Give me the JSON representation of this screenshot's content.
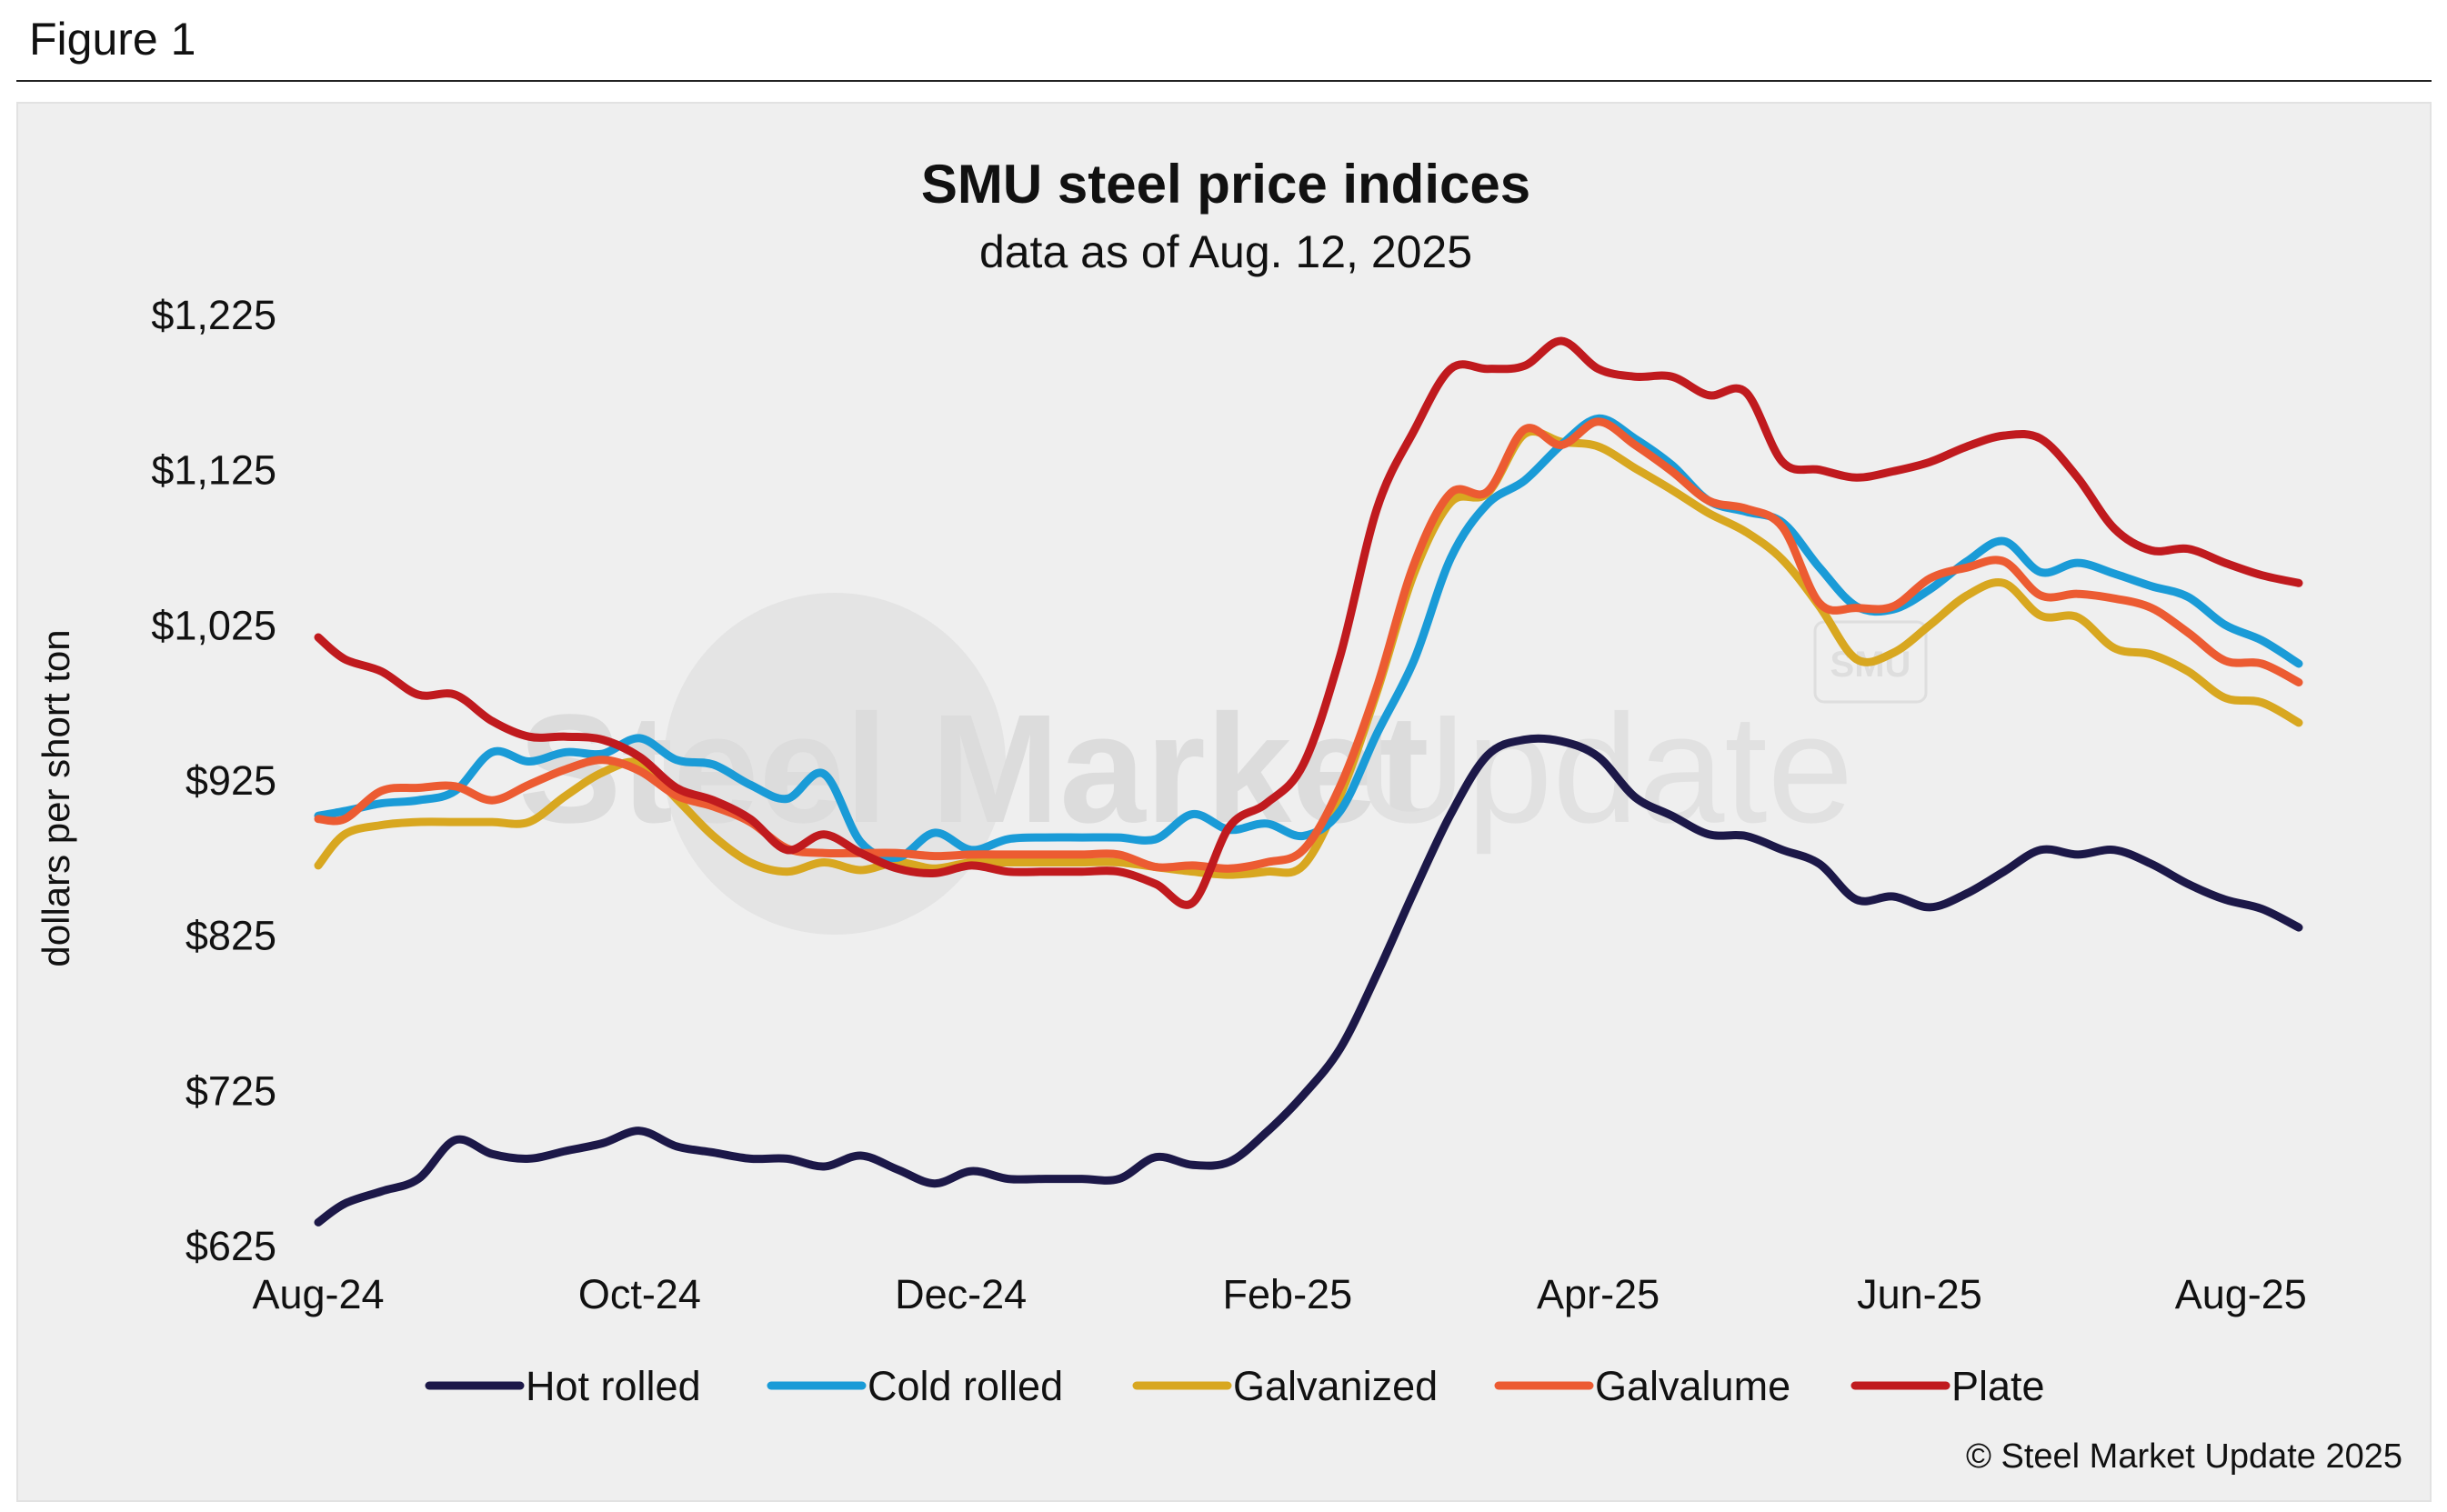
{
  "figure_label": "Figure 1",
  "credit": "© Steel Market Update 2025",
  "watermark": {
    "bold": "Steel Market",
    "thin": "Update",
    "badge": "SMU"
  },
  "colors": {
    "Hot rolled": "#1c1848",
    "Cold rolled": "#1a9bd7",
    "Galvanized": "#d8a720",
    "Galvalume": "#ec5b32",
    "Plate": "#c01a1e",
    "background": "#efefef"
  },
  "chart_data": {
    "type": "line",
    "title": "SMU steel price indices",
    "subtitle": "data as of Aug. 12, 2025",
    "ylabel": "dollars per short ton",
    "xlabel": "",
    "ylim": [
      625,
      1225
    ],
    "yticks": [
      625,
      725,
      825,
      925,
      1025,
      1125,
      1225
    ],
    "ytick_labels": [
      "$625",
      "$725",
      "$825",
      "$925",
      "$1,025",
      "$1,125",
      "$1,225"
    ],
    "xlim": [
      "2024-08-01",
      "2025-08-12"
    ],
    "xticks": [
      "2024-08-01",
      "2024-10-01",
      "2024-12-01",
      "2025-02-01",
      "2025-04-01",
      "2025-06-01",
      "2025-08-01"
    ],
    "xtick_labels": [
      "Aug-24",
      "Oct-24",
      "Dec-24",
      "Feb-25",
      "Apr-25",
      "Jun-25",
      "Aug-25"
    ],
    "grid": false,
    "legend_position": "bottom",
    "series": [
      {
        "name": "Hot rolled",
        "x": [
          "2024-08-01",
          "2024-08-06",
          "2024-08-13",
          "2024-08-20",
          "2024-08-27",
          "2024-09-03",
          "2024-09-10",
          "2024-09-17",
          "2024-09-24",
          "2024-10-01",
          "2024-10-08",
          "2024-10-15",
          "2024-10-22",
          "2024-10-29",
          "2024-11-05",
          "2024-11-12",
          "2024-11-19",
          "2024-11-26",
          "2024-12-03",
          "2024-12-10",
          "2024-12-17",
          "2024-12-24",
          "2024-12-31",
          "2025-01-07",
          "2025-01-14",
          "2025-01-21",
          "2025-01-28",
          "2025-02-04",
          "2025-02-11",
          "2025-02-18",
          "2025-02-25",
          "2025-03-04",
          "2025-03-11",
          "2025-03-18",
          "2025-03-25",
          "2025-04-01",
          "2025-04-08",
          "2025-04-15",
          "2025-04-22",
          "2025-04-29",
          "2025-05-06",
          "2025-05-13",
          "2025-05-20",
          "2025-05-27",
          "2025-06-03",
          "2025-06-10",
          "2025-06-17",
          "2025-06-24",
          "2025-07-01",
          "2025-07-08",
          "2025-07-15",
          "2025-07-22",
          "2025-07-29",
          "2025-08-05",
          "2025-08-12"
        ],
        "values": [
          640,
          652,
          660,
          668,
          693,
          684,
          681,
          686,
          691,
          699,
          689,
          685,
          681,
          681,
          676,
          683,
          674,
          665,
          673,
          668,
          668,
          668,
          668,
          682,
          677,
          679,
          698,
          722,
          752,
          800,
          853,
          903,
          941,
          951,
          950,
          940,
          914,
          902,
          890,
          889,
          880,
          871,
          848,
          850,
          843,
          852,
          866,
          880,
          877,
          880,
          871,
          858,
          848,
          842,
          830
        ]
      },
      {
        "name": "Cold rolled",
        "x": [
          "2024-08-01",
          "2024-08-06",
          "2024-08-13",
          "2024-08-20",
          "2024-08-27",
          "2024-09-03",
          "2024-09-10",
          "2024-09-17",
          "2024-09-24",
          "2024-10-01",
          "2024-10-08",
          "2024-10-15",
          "2024-10-22",
          "2024-10-29",
          "2024-11-05",
          "2024-11-12",
          "2024-11-19",
          "2024-11-26",
          "2024-12-03",
          "2024-12-10",
          "2024-12-17",
          "2024-12-24",
          "2024-12-31",
          "2025-01-07",
          "2025-01-14",
          "2025-01-21",
          "2025-01-28",
          "2025-02-04",
          "2025-02-11",
          "2025-02-18",
          "2025-02-25",
          "2025-03-04",
          "2025-03-11",
          "2025-03-18",
          "2025-03-25",
          "2025-04-01",
          "2025-04-08",
          "2025-04-15",
          "2025-04-22",
          "2025-04-29",
          "2025-05-06",
          "2025-05-13",
          "2025-05-20",
          "2025-05-27",
          "2025-06-03",
          "2025-06-10",
          "2025-06-17",
          "2025-06-24",
          "2025-07-01",
          "2025-07-08",
          "2025-07-15",
          "2025-07-22",
          "2025-07-29",
          "2025-08-05",
          "2025-08-12"
        ],
        "values": [
          902,
          905,
          910,
          912,
          918,
          943,
          937,
          943,
          942,
          952,
          938,
          935,
          922,
          913,
          929,
          885,
          875,
          891,
          880,
          887,
          888,
          888,
          888,
          887,
          903,
          893,
          897,
          889,
          905,
          955,
          1002,
          1068,
          1103,
          1118,
          1141,
          1158,
          1145,
          1128,
          1105,
          1098,
          1091,
          1062,
          1037,
          1035,
          1048,
          1066,
          1079,
          1059,
          1065,
          1058,
          1050,
          1043,
          1025,
          1015,
          1000
        ]
      },
      {
        "name": "Galvanized",
        "x": [
          "2024-08-01",
          "2024-08-06",
          "2024-08-13",
          "2024-08-20",
          "2024-08-27",
          "2024-09-03",
          "2024-09-10",
          "2024-09-17",
          "2024-09-24",
          "2024-10-01",
          "2024-10-08",
          "2024-10-15",
          "2024-10-22",
          "2024-10-29",
          "2024-11-05",
          "2024-11-12",
          "2024-11-19",
          "2024-11-26",
          "2024-12-03",
          "2024-12-10",
          "2024-12-17",
          "2024-12-24",
          "2024-12-31",
          "2025-01-07",
          "2025-01-14",
          "2025-01-21",
          "2025-01-28",
          "2025-02-04",
          "2025-02-11",
          "2025-02-18",
          "2025-02-25",
          "2025-03-04",
          "2025-03-11",
          "2025-03-18",
          "2025-03-25",
          "2025-04-01",
          "2025-04-08",
          "2025-04-15",
          "2025-04-22",
          "2025-04-29",
          "2025-05-06",
          "2025-05-13",
          "2025-05-20",
          "2025-05-27",
          "2025-06-03",
          "2025-06-10",
          "2025-06-17",
          "2025-06-24",
          "2025-07-01",
          "2025-07-08",
          "2025-07-15",
          "2025-07-22",
          "2025-07-29",
          "2025-08-05",
          "2025-08-12"
        ],
        "values": [
          870,
          890,
          896,
          898,
          898,
          898,
          898,
          915,
          930,
          936,
          913,
          889,
          872,
          866,
          872,
          867,
          872,
          868,
          872,
          872,
          872,
          872,
          872,
          869,
          866,
          864,
          866,
          870,
          915,
          982,
          1058,
          1104,
          1110,
          1148,
          1143,
          1140,
          1126,
          1112,
          1097,
          1085,
          1067,
          1037,
          1003,
          1007,
          1025,
          1044,
          1052,
          1031,
          1030,
          1010,
          1006,
          995,
          978,
          975,
          962
        ]
      },
      {
        "name": "Galvalume",
        "x": [
          "2024-08-01",
          "2024-08-06",
          "2024-08-13",
          "2024-08-20",
          "2024-08-27",
          "2024-09-03",
          "2024-09-10",
          "2024-09-17",
          "2024-09-24",
          "2024-10-01",
          "2024-10-08",
          "2024-10-15",
          "2024-10-22",
          "2024-10-29",
          "2024-11-05",
          "2024-11-12",
          "2024-11-19",
          "2024-11-26",
          "2024-12-03",
          "2024-12-10",
          "2024-12-17",
          "2024-12-24",
          "2024-12-31",
          "2025-01-07",
          "2025-01-14",
          "2025-01-21",
          "2025-01-28",
          "2025-02-04",
          "2025-02-11",
          "2025-02-18",
          "2025-02-25",
          "2025-03-04",
          "2025-03-11",
          "2025-03-18",
          "2025-03-25",
          "2025-04-01",
          "2025-04-08",
          "2025-04-15",
          "2025-04-22",
          "2025-04-29",
          "2025-05-06",
          "2025-05-13",
          "2025-05-20",
          "2025-05-27",
          "2025-06-03",
          "2025-06-10",
          "2025-06-17",
          "2025-06-24",
          "2025-07-01",
          "2025-07-08",
          "2025-07-15",
          "2025-07-22",
          "2025-07-29",
          "2025-08-05",
          "2025-08-12"
        ],
        "values": [
          900,
          900,
          918,
          920,
          921,
          912,
          922,
          932,
          938,
          931,
          915,
          908,
          898,
          881,
          878,
          878,
          878,
          876,
          877,
          877,
          877,
          877,
          877,
          869,
          870,
          868,
          872,
          880,
          921,
          985,
          1064,
          1110,
          1111,
          1151,
          1141,
          1156,
          1141,
          1124,
          1105,
          1100,
          1088,
          1039,
          1036,
          1037,
          1055,
          1062,
          1066,
          1044,
          1045,
          1042,
          1036,
          1020,
          1002,
          1000,
          988
        ]
      },
      {
        "name": "Plate",
        "x": [
          "2024-08-01",
          "2024-08-06",
          "2024-08-13",
          "2024-08-20",
          "2024-08-27",
          "2024-09-03",
          "2024-09-10",
          "2024-09-17",
          "2024-09-24",
          "2024-10-01",
          "2024-10-08",
          "2024-10-15",
          "2024-10-22",
          "2024-10-29",
          "2024-11-05",
          "2024-11-12",
          "2024-11-19",
          "2024-11-26",
          "2024-12-03",
          "2024-12-10",
          "2024-12-17",
          "2024-12-24",
          "2024-12-31",
          "2025-01-07",
          "2025-01-14",
          "2025-01-21",
          "2025-01-28",
          "2025-02-04",
          "2025-02-11",
          "2025-02-18",
          "2025-02-25",
          "2025-03-04",
          "2025-03-11",
          "2025-03-18",
          "2025-03-25",
          "2025-04-01",
          "2025-04-08",
          "2025-04-15",
          "2025-04-22",
          "2025-04-29",
          "2025-05-06",
          "2025-05-13",
          "2025-05-20",
          "2025-05-27",
          "2025-06-03",
          "2025-06-10",
          "2025-06-17",
          "2025-06-24",
          "2025-07-01",
          "2025-07-08",
          "2025-07-15",
          "2025-07-22",
          "2025-07-29",
          "2025-08-05",
          "2025-08-12"
        ],
        "values": [
          1017,
          1003,
          995,
          980,
          980,
          963,
          953,
          953,
          951,
          940,
          920,
          912,
          900,
          880,
          890,
          878,
          868,
          865,
          870,
          866,
          866,
          866,
          866,
          858,
          846,
          895,
          910,
          935,
          1005,
          1100,
          1150,
          1190,
          1190,
          1192,
          1208,
          1190,
          1185,
          1185,
          1173,
          1175,
          1130,
          1125,
          1120,
          1124,
          1130,
          1140,
          1147,
          1145,
          1120,
          1087,
          1073,
          1074,
          1065,
          1057,
          1052
        ]
      }
    ]
  }
}
